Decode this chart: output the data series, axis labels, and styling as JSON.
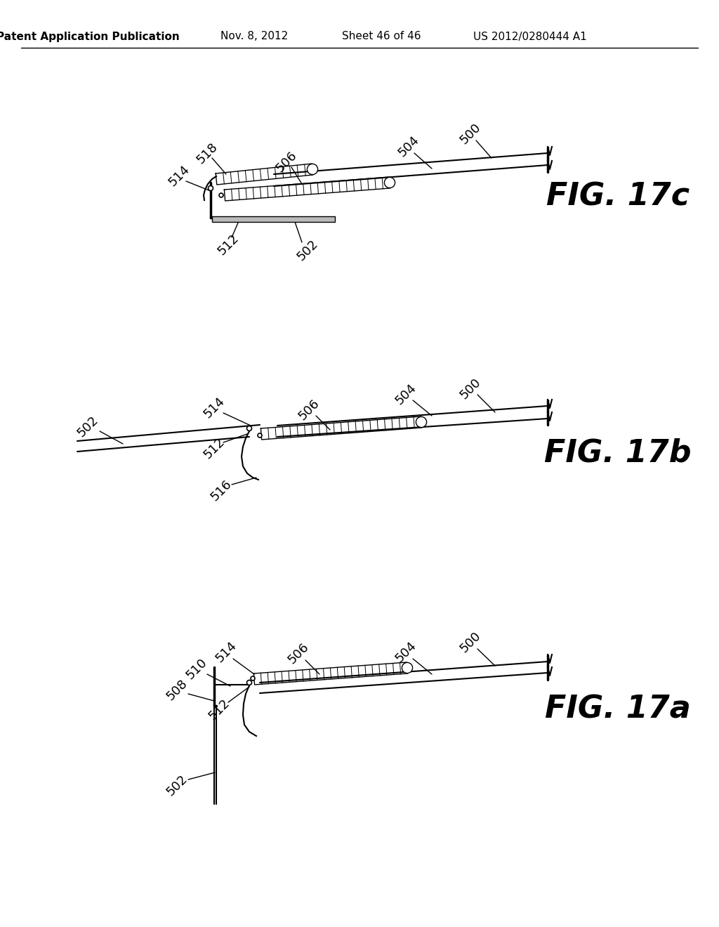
{
  "title_header": "Patent Application Publication",
  "date_header": "Nov. 8, 2012",
  "sheet_header": "Sheet 46 of 46",
  "patent_header": "US 2012/0280444 A1",
  "background_color": "#ffffff",
  "header_fontsize": 11,
  "ref_fontsize": 13,
  "fig_label_fontsize": 32
}
